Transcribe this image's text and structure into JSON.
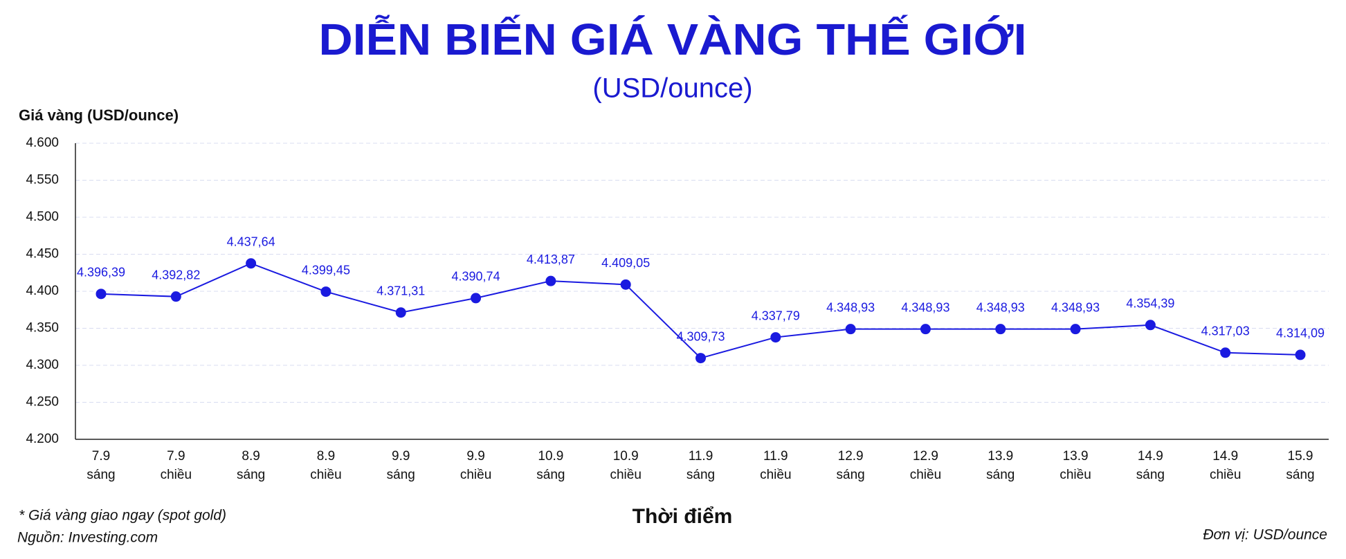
{
  "chart_data": {
    "type": "line",
    "title": "DIỄN BIẾN GIÁ VÀNG THẾ GIỚI",
    "subtitle": "(USD/ounce)",
    "y_label": "Giá vàng (USD/ounce)",
    "x_label": "Thời điểm",
    "notes": [
      "* Giá vàng giao ngay (spot gold)",
      "Nguồn: Investing.com"
    ],
    "unit_note": "Đơn vị: USD/ounce",
    "categories": [
      [
        "7.9",
        "sáng"
      ],
      [
        "7.9",
        "chiều"
      ],
      [
        "8.9",
        "sáng"
      ],
      [
        "8.9",
        "chiều"
      ],
      [
        "9.9",
        "sáng"
      ],
      [
        "9.9",
        "chiều"
      ],
      [
        "10.9",
        "sáng"
      ],
      [
        "10.9",
        "chiều"
      ],
      [
        "11.9",
        "sáng"
      ],
      [
        "11.9",
        "chiều"
      ],
      [
        "12.9",
        "sáng"
      ],
      [
        "12.9",
        "chiều"
      ],
      [
        "13.9",
        "sáng"
      ],
      [
        "13.9",
        "chiều"
      ],
      [
        "14.9",
        "sáng"
      ],
      [
        "14.9",
        "chiều"
      ],
      [
        "15.9",
        "sáng"
      ]
    ],
    "values": [
      4396.39,
      4392.82,
      4437.64,
      4399.45,
      4371.31,
      4390.74,
      4413.87,
      4409.05,
      4309.73,
      4337.79,
      4348.93,
      4348.93,
      4348.93,
      4348.93,
      4354.39,
      4317.03,
      4314.09
    ],
    "value_labels": [
      "4.396,39",
      "4.392,82",
      "4.437,64",
      "4.399,45",
      "4.371,31",
      "4.390,74",
      "4.413,87",
      "4.409,05",
      "4.309,73",
      "4.337,79",
      "4.348,93",
      "4.348,93",
      "4.348,93",
      "4.348,93",
      "4.354,39",
      "4.317,03",
      "4.314,09"
    ],
    "color": "#1a1ae0",
    "ylim": [
      4200,
      4600
    ],
    "yticks": [
      {
        "value": 4200,
        "label": "4.200"
      },
      {
        "value": 4250,
        "label": "4.250"
      },
      {
        "value": 4300,
        "label": "4.300"
      },
      {
        "value": 4350,
        "label": "4.350"
      },
      {
        "value": 4400,
        "label": "4.400"
      },
      {
        "value": 4450,
        "label": "4.450"
      },
      {
        "value": 4500,
        "label": "4.500"
      },
      {
        "value": 4550,
        "label": "4.550"
      },
      {
        "value": 4600,
        "label": "4.600"
      }
    ],
    "grid": true
  }
}
